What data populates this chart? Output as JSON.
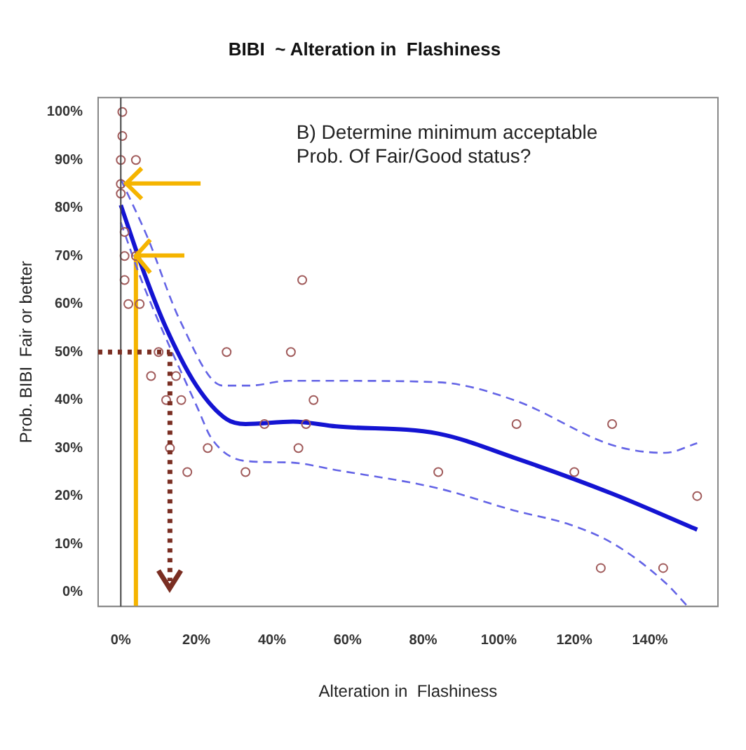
{
  "chart_data": {
    "type": "scatter",
    "title": "BIBI  ~ Alteration in  Flashiness",
    "xlabel": "Alteration in  Flashiness",
    "ylabel": "Prob. BIBI  Fair or better",
    "annotations": [
      "B)   Determine minimum acceptable Prob. Of Fair/Good status?"
    ],
    "xlim": [
      -6,
      158
    ],
    "ylim": [
      -3,
      103
    ],
    "xticks": [
      {
        "value": 0,
        "label": "0%"
      },
      {
        "value": 20,
        "label": "20%"
      },
      {
        "value": 40,
        "label": "40%"
      },
      {
        "value": 60,
        "label": "60%"
      },
      {
        "value": 80,
        "label": "80%"
      },
      {
        "value": 100,
        "label": "100%"
      },
      {
        "value": 120,
        "label": "120%"
      },
      {
        "value": 140,
        "label": "140%"
      }
    ],
    "yticks": [
      {
        "value": 0,
        "label": "0%"
      },
      {
        "value": 10,
        "label": "10%"
      },
      {
        "value": 20,
        "label": "20%"
      },
      {
        "value": 30,
        "label": "30%"
      },
      {
        "value": 40,
        "label": "40%"
      },
      {
        "value": 50,
        "label": "50%"
      },
      {
        "value": 60,
        "label": "60%"
      },
      {
        "value": 70,
        "label": "70%"
      },
      {
        "value": 80,
        "label": "80%"
      },
      {
        "value": 90,
        "label": "90%"
      },
      {
        "value": 100,
        "label": "100%"
      }
    ],
    "grid": false,
    "legend": false,
    "ref_lines": [
      {
        "axis": "x",
        "value": 0,
        "color": "#444444",
        "line_style": "solid"
      },
      {
        "axis": "y",
        "value": 50,
        "color": "#7a2e22",
        "line_style": "dotted"
      },
      {
        "axis": "x",
        "value": 13,
        "color": "#7a2e22",
        "line_style": "dotted"
      }
    ],
    "series": [
      {
        "marker": "circle",
        "color": "#a05a5a",
        "x": [
          0.4,
          0.4,
          0,
          4,
          0,
          0,
          1,
          1,
          4,
          1,
          2,
          5,
          48,
          10,
          28,
          45,
          8,
          14.6,
          12,
          16,
          51,
          38,
          49,
          13,
          23,
          47,
          17.6,
          33,
          104.7,
          130,
          84,
          120,
          152.5,
          127,
          143.5
        ],
        "values": [
          100,
          95,
          90,
          90,
          85,
          83,
          75,
          70,
          70,
          65,
          60,
          60,
          65,
          50,
          50,
          50,
          45,
          45,
          40,
          40,
          40,
          35,
          35,
          30,
          30,
          30,
          25,
          25,
          35,
          35,
          25,
          25,
          20,
          5,
          5
        ]
      },
      {
        "type": "line",
        "marker": "none",
        "line_style": "solid",
        "color": "#1414d2",
        "x": [
          0,
          6.4,
          12,
          20,
          28,
          33,
          45.6,
          57,
          84,
          104,
          130,
          152.5
        ],
        "values": [
          80.6,
          66,
          55,
          43,
          36,
          35,
          35.5,
          34.5,
          33,
          28,
          20.5,
          13
        ]
      },
      {
        "type": "line",
        "marker": "none",
        "line_style": "dashed",
        "color": "#6464e6",
        "x": [
          0,
          7,
          15.7,
          27,
          34,
          44.5,
          57,
          84,
          104,
          130.5,
          144,
          152.5
        ],
        "values": [
          86,
          74,
          56.5,
          43,
          43,
          44,
          44,
          43.7,
          40,
          30.5,
          29,
          31
        ]
      },
      {
        "type": "line",
        "marker": "none",
        "line_style": "dashed",
        "color": "#6464e6",
        "x": [
          0,
          5.6,
          20.5,
          24,
          33,
          44.5,
          57,
          84,
          104,
          119,
          130.5,
          144,
          150
        ],
        "values": [
          77,
          64.7,
          38,
          32,
          27.3,
          27,
          25.4,
          21.6,
          17,
          14,
          10,
          2,
          -3
        ]
      },
      {
        "type": "line",
        "marker": "none",
        "line_style": "solid",
        "color": "#f5b400",
        "x": [
          4,
          4
        ],
        "values": [
          -3,
          70
        ]
      }
    ]
  }
}
